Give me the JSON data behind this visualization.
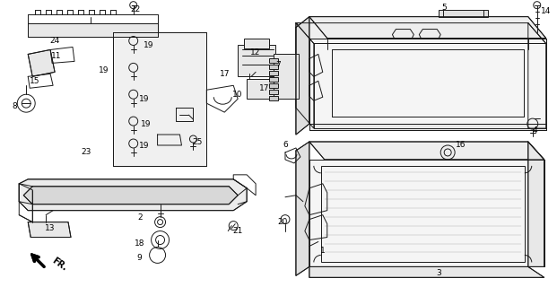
{
  "background_color": "#ffffff",
  "line_color": "#1a1a1a",
  "fig_width": 6.21,
  "fig_height": 3.2,
  "dpi": 100
}
